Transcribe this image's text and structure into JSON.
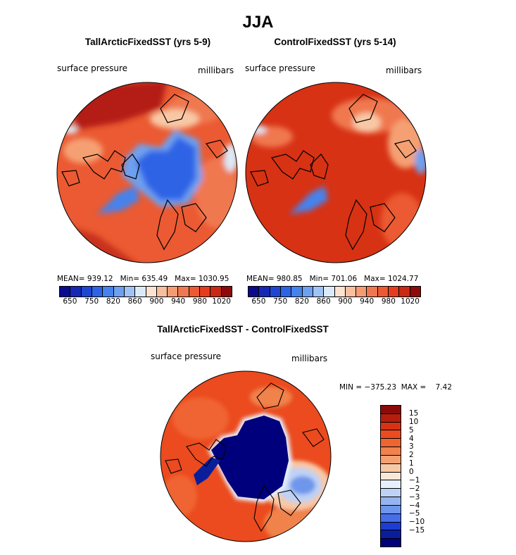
{
  "main_title": "JJA",
  "panels": [
    {
      "title": "TallArcticFixedSST (yrs 5-9)",
      "variable": "surface pressure",
      "units": "millibars",
      "stats": "MEAN= 939.12   Min= 635.49   Max= 1030.95"
    },
    {
      "title": "ControlFixedSST (yrs 5-14)",
      "variable": "surface pressure",
      "units": "millibars",
      "stats": "MEAN= 980.85   Min= 701.06   Max= 1024.77"
    },
    {
      "title": "TallArcticFixedSST - ControlFixedSST",
      "variable": "surface pressure",
      "units": "millibars",
      "stats": "MIN = −375.23  MAX =    7.42"
    }
  ],
  "abs_colorbar": {
    "colors": [
      "#0a0a8c",
      "#1428b4",
      "#1e46d2",
      "#2d64e6",
      "#4682eb",
      "#6ea0f0",
      "#a0c3f5",
      "#dceaf8",
      "#fbe3d2",
      "#f7bea0",
      "#f59b73",
      "#f07850",
      "#eb5a32",
      "#e63c1e",
      "#c82814",
      "#8c0a0a"
    ],
    "labels": [
      "650",
      "750",
      "820",
      "860",
      "900",
      "940",
      "980",
      "1020"
    ]
  },
  "diff_colorbar": {
    "colors": [
      "#8c0a0a",
      "#b41e0f",
      "#d73214",
      "#eb4b1e",
      "#f06432",
      "#f0824b",
      "#f5a073",
      "#f8c8a5",
      "#fae6d7",
      "#e6effa",
      "#bed2f5",
      "#96b4f0",
      "#6e96eb",
      "#466ee6",
      "#1e3cd2",
      "#0a1e9b",
      "#00007d"
    ],
    "labels": [
      "15",
      "10",
      "5",
      "4",
      "3",
      "2",
      "1",
      "0",
      "−1",
      "−2",
      "−3",
      "−4",
      "−5",
      "−10",
      "−15"
    ]
  }
}
